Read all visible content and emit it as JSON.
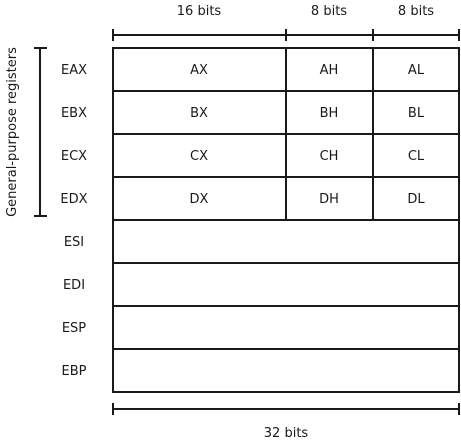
{
  "top_labels": {
    "high16": "16 bits",
    "high8": "8 bits",
    "low8": "8 bits"
  },
  "bottom_label": "32 bits",
  "side_label": "General-purpose registers",
  "registers": [
    {
      "name": "EAX",
      "x": "AX",
      "h": "AH",
      "l": "AL"
    },
    {
      "name": "EBX",
      "x": "BX",
      "h": "BH",
      "l": "BL"
    },
    {
      "name": "ECX",
      "x": "CX",
      "h": "CH",
      "l": "CL"
    },
    {
      "name": "EDX",
      "x": "DX",
      "h": "DH",
      "l": "DL"
    },
    {
      "name": "ESI"
    },
    {
      "name": "EDI"
    },
    {
      "name": "ESP"
    },
    {
      "name": "EBP"
    }
  ]
}
